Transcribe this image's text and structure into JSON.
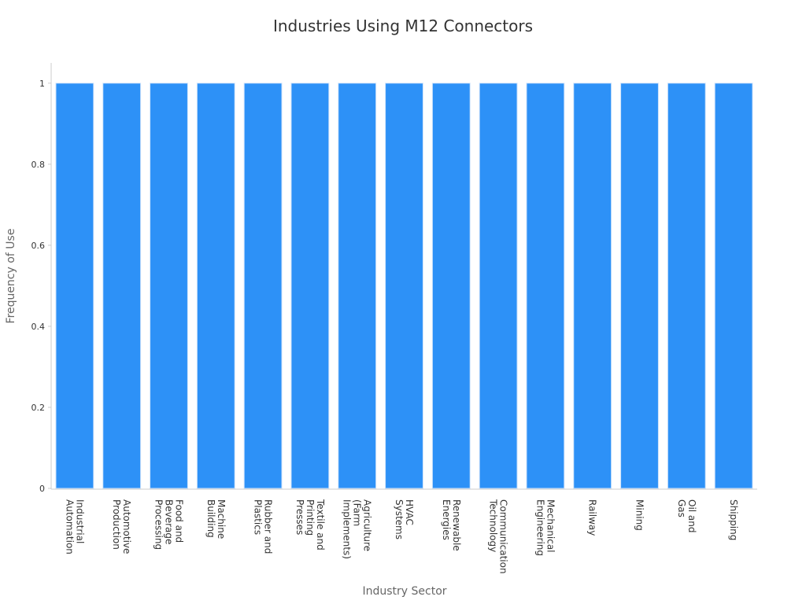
{
  "chart_data": {
    "type": "bar",
    "title": "Industries Using M12 Connectors",
    "x_label": "Industry Sector",
    "y_label": "Frequency of Use",
    "categories": [
      "Industrial\nAutomation",
      "Automotive\nProduction",
      "Food and\nBeverage\nProcessing",
      "Machine\nBuilding",
      "Rubber and\nPlastics",
      "Textile and\nPrinting\nPresses",
      "Agriculture\n(Farm\nImplements)",
      "HVAC\nSystems",
      "Renewable\nEnergies",
      "Communication\nTechnology",
      "Mechanical\nEngineering",
      "Railway",
      "Mining",
      "Oil and\nGas",
      "Shipping"
    ],
    "values": [
      1,
      1,
      1,
      1,
      1,
      1,
      1,
      1,
      1,
      1,
      1,
      1,
      1,
      1,
      1
    ],
    "color": "#2d91f7",
    "ylim": [
      0,
      1.05
    ],
    "yticks": [
      0,
      0.2,
      0.4,
      0.6,
      0.8,
      1
    ],
    "grid": false
  }
}
